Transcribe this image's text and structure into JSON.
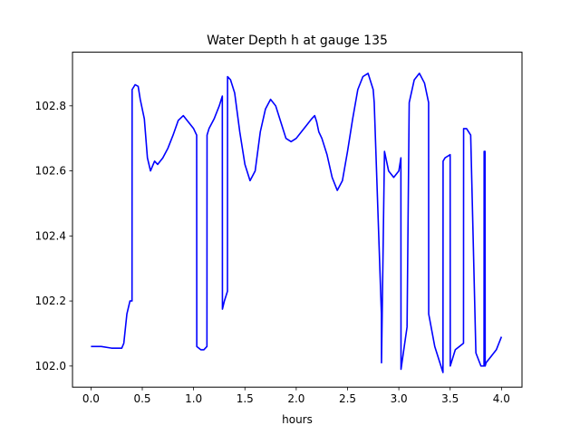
{
  "chart_data": {
    "type": "line",
    "title": "Water Depth h at gauge 135",
    "xlabel": "hours",
    "ylabel": "",
    "xlim": [
      -0.18,
      4.2
    ],
    "ylim": [
      101.935,
      102.965
    ],
    "x_ticks": [
      0.0,
      0.5,
      1.0,
      1.5,
      2.0,
      2.5,
      3.0,
      3.5,
      4.0
    ],
    "x_tick_labels": [
      "0.0",
      "0.5",
      "1.0",
      "1.5",
      "2.0",
      "2.5",
      "3.0",
      "3.5",
      "4.0"
    ],
    "y_ticks": [
      102.0,
      102.2,
      102.4,
      102.6,
      102.8
    ],
    "y_tick_labels": [
      "102.0",
      "102.2",
      "102.4",
      "102.6",
      "102.8"
    ],
    "grid": false,
    "series": [
      {
        "color": "#0000ff",
        "x": [
          0.0,
          0.1,
          0.2,
          0.3,
          0.32,
          0.35,
          0.38,
          0.4,
          0.401,
          0.43,
          0.46,
          0.48,
          0.52,
          0.55,
          0.58,
          0.62,
          0.65,
          0.7,
          0.75,
          0.8,
          0.85,
          0.9,
          0.95,
          1.0,
          1.03,
          1.031,
          1.07,
          1.1,
          1.13,
          1.131,
          1.15,
          1.2,
          1.25,
          1.28,
          1.281,
          1.3,
          1.33,
          1.331,
          1.36,
          1.4,
          1.45,
          1.5,
          1.55,
          1.6,
          1.65,
          1.7,
          1.75,
          1.8,
          1.85,
          1.9,
          1.95,
          2.0,
          2.05,
          2.1,
          2.15,
          2.18,
          2.2,
          2.22,
          2.25,
          2.3,
          2.35,
          2.4,
          2.45,
          2.5,
          2.55,
          2.6,
          2.65,
          2.7,
          2.75,
          2.76,
          2.83,
          2.831,
          2.86,
          2.9,
          2.95,
          3.0,
          3.02,
          3.021,
          3.08,
          3.1,
          3.101,
          3.15,
          3.2,
          3.25,
          3.29,
          3.291,
          3.35,
          3.43,
          3.431,
          3.45,
          3.5,
          3.501,
          3.55,
          3.63,
          3.631,
          3.66,
          3.7,
          3.75,
          3.751,
          3.8,
          3.83,
          3.831,
          3.84,
          3.841,
          3.85,
          3.9,
          3.95,
          4.0
        ],
        "values": [
          102.06,
          102.06,
          102.055,
          102.055,
          102.07,
          102.16,
          102.2,
          102.2,
          102.85,
          102.865,
          102.86,
          102.82,
          102.76,
          102.64,
          102.6,
          102.63,
          102.62,
          102.64,
          102.67,
          102.71,
          102.755,
          102.77,
          102.75,
          102.73,
          102.71,
          102.06,
          102.05,
          102.05,
          102.06,
          102.71,
          102.73,
          102.76,
          102.8,
          102.83,
          102.175,
          102.2,
          102.23,
          102.89,
          102.88,
          102.84,
          102.72,
          102.62,
          102.57,
          102.6,
          102.72,
          102.79,
          102.82,
          102.8,
          102.75,
          102.7,
          102.69,
          102.7,
          102.72,
          102.74,
          102.76,
          102.77,
          102.75,
          102.72,
          102.7,
          102.65,
          102.58,
          102.54,
          102.57,
          102.66,
          102.76,
          102.85,
          102.89,
          102.9,
          102.85,
          102.81,
          102.16,
          102.01,
          102.66,
          102.6,
          102.58,
          102.6,
          102.64,
          101.99,
          102.12,
          102.78,
          102.81,
          102.88,
          102.9,
          102.87,
          102.81,
          102.16,
          102.06,
          101.98,
          102.63,
          102.64,
          102.65,
          102.0,
          102.05,
          102.07,
          102.73,
          102.73,
          102.71,
          102.05,
          102.04,
          102.0,
          102.0,
          102.66,
          102.66,
          102.0,
          102.01,
          102.03,
          102.05,
          102.09
        ]
      }
    ]
  }
}
